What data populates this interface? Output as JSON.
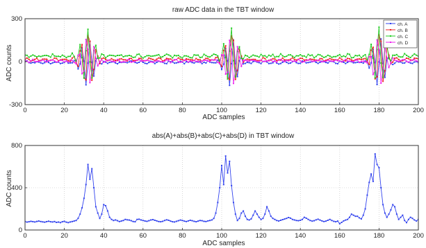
{
  "chart_data": [
    {
      "type": "line",
      "title": "raw ADC data in the TBT window",
      "xlabel": "ADC samples",
      "ylabel": "ADC counts",
      "xlim": [
        0,
        200
      ],
      "ylim": [
        -300,
        300
      ],
      "xticks": [
        0,
        20,
        40,
        60,
        80,
        100,
        120,
        140,
        160,
        180,
        200
      ],
      "yticks": [
        -300,
        0,
        300
      ],
      "grid": true,
      "legend_position": "top-right",
      "pulse_centers": [
        32,
        105,
        180
      ],
      "series": [
        {
          "name": "ch. A",
          "color": "#3344ee",
          "baseline": -5,
          "amplitude": 165,
          "phase": 0.0,
          "noise": 6
        },
        {
          "name": "ch. B",
          "color": "#ee2222",
          "baseline": 15,
          "amplitude": 220,
          "phase": 0.9,
          "noise": 7
        },
        {
          "name": "ch. C",
          "color": "#22cc22",
          "baseline": 40,
          "amplitude": 200,
          "phase": 1.8,
          "noise": 8
        },
        {
          "name": "ch. D",
          "color": "#ee22ee",
          "baseline": 5,
          "amplitude": 180,
          "phase": 2.7,
          "noise": 6
        }
      ]
    },
    {
      "type": "line",
      "title": "abs(A)+abs(B)+abs(C)+abs(D) in TBT window",
      "xlabel": "ADC samples",
      "ylabel": "ADC counts",
      "xlim": [
        0,
        200
      ],
      "ylim": [
        0,
        800
      ],
      "xticks": [
        0,
        20,
        40,
        60,
        80,
        100,
        120,
        140,
        160,
        180,
        200
      ],
      "yticks": [
        0,
        400,
        800
      ],
      "grid": true,
      "series": [
        {
          "color": "#3344ee",
          "x_start": 0,
          "x_step": 1,
          "values": [
            80,
            75,
            78,
            82,
            79,
            76,
            81,
            85,
            80,
            77,
            74,
            79,
            83,
            78,
            76,
            80,
            72,
            75,
            70,
            78,
            82,
            74,
            70,
            76,
            80,
            85,
            90,
            110,
            150,
            210,
            300,
            430,
            620,
            480,
            580,
            400,
            220,
            160,
            110,
            150,
            240,
            230,
            180,
            120,
            100,
            90,
            95,
            88,
            80,
            85,
            90,
            100,
            96,
            94,
            88,
            80,
            78,
            100,
            102,
            95,
            90,
            85,
            82,
            88,
            95,
            98,
            92,
            86,
            80,
            78,
            82,
            90,
            96,
            92,
            84,
            78,
            76,
            82,
            88,
            94,
            90,
            84,
            80,
            86,
            92,
            88,
            82,
            78,
            84,
            90,
            88,
            82,
            80,
            86,
            90,
            95,
            110,
            160,
            260,
            400,
            610,
            430,
            700,
            540,
            650,
            420,
            260,
            150,
            90,
            110,
            160,
            180,
            130,
            100,
            95,
            105,
            140,
            180,
            150,
            120,
            100,
            110,
            150,
            220,
            180,
            130,
            110,
            100,
            90,
            85,
            92,
            98,
            104,
            110,
            118,
            112,
            100,
            95,
            90,
            88,
            92,
            100,
            120,
            112,
            100,
            90,
            84,
            88,
            96,
            102,
            94,
            86,
            80,
            84,
            92,
            100,
            90,
            82,
            78,
            84,
            60,
            72,
            86,
            94,
            100,
            120,
            150,
            140,
            130,
            130,
            115,
            105,
            140,
            200,
            330,
            450,
            530,
            460,
            720,
            620,
            590,
            400,
            240,
            160,
            120,
            150,
            190,
            240,
            220,
            150,
            100,
            120,
            140,
            90,
            70,
            100,
            120,
            110,
            95,
            85,
            100
          ]
        }
      ]
    }
  ]
}
